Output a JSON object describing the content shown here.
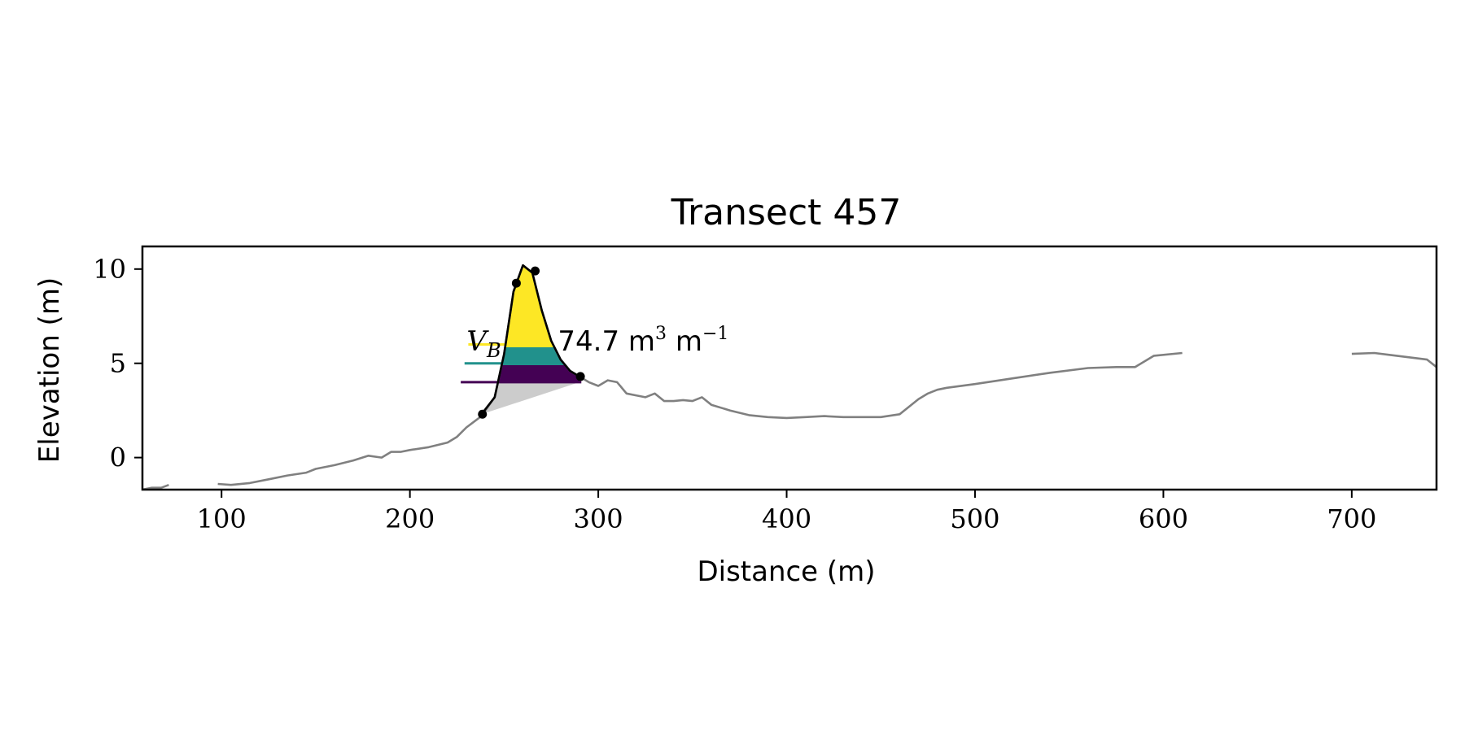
{
  "chart_data": {
    "type": "line",
    "title": "Transect 457",
    "xlabel": "Distance (m)",
    "ylabel": "Elevation (m)",
    "xlim": [
      58,
      745
    ],
    "ylim": [
      -1.7,
      11.2
    ],
    "xticks": [
      100,
      200,
      300,
      400,
      500,
      600,
      700
    ],
    "yticks": [
      0,
      5,
      10
    ],
    "xtick_labels": [
      "100",
      "200",
      "300",
      "400",
      "500",
      "600",
      "700"
    ],
    "ytick_labels": [
      "0",
      "5",
      "10"
    ],
    "grid": false,
    "colors": {
      "profile": "#808080",
      "dune_outline": "#000000",
      "lower_fill": "#cccccc",
      "band_top": "#fde725",
      "band_mid": "#21918c",
      "band_low": "#440154"
    },
    "profile": {
      "x": [
        58,
        63,
        68,
        72,
        98,
        105,
        115,
        125,
        135,
        145,
        150,
        160,
        170,
        178,
        185,
        190,
        195,
        200,
        210,
        220,
        225,
        230,
        238,
        245,
        250,
        255,
        260,
        265,
        270,
        275,
        280,
        285,
        290,
        295,
        300,
        305,
        310,
        315,
        320,
        325,
        330,
        335,
        340,
        345,
        350,
        355,
        360,
        370,
        380,
        390,
        400,
        410,
        420,
        430,
        440,
        450,
        460,
        465,
        470,
        475,
        480,
        485,
        500,
        520,
        540,
        560,
        575,
        585,
        595,
        610,
        640,
        670,
        700,
        712,
        720,
        740,
        745
      ],
      "y": [
        -1.7,
        -1.6,
        -1.6,
        -1.45,
        -1.4,
        -1.45,
        -1.35,
        -1.15,
        -0.95,
        -0.8,
        -0.6,
        -0.4,
        -0.15,
        0.1,
        0.0,
        0.3,
        0.3,
        0.4,
        0.55,
        0.8,
        1.1,
        1.6,
        2.2,
        3.2,
        5.5,
        8.8,
        10.2,
        9.8,
        7.8,
        6.2,
        5.2,
        4.6,
        4.3,
        4.0,
        3.8,
        4.1,
        4.0,
        3.4,
        3.3,
        3.2,
        3.4,
        3.0,
        3.0,
        3.05,
        3.0,
        3.2,
        2.8,
        2.5,
        2.25,
        2.15,
        2.1,
        2.15,
        2.2,
        2.15,
        2.15,
        2.15,
        2.3,
        2.7,
        3.1,
        3.4,
        3.6,
        3.7,
        3.9,
        4.2,
        4.5,
        4.75,
        4.8,
        4.8,
        5.4,
        5.55,
        5.5,
        5.45,
        5.5,
        5.55,
        5.45,
        5.2,
        4.8
      ]
    },
    "dune": {
      "x": [
        238,
        245,
        250,
        255,
        260,
        265,
        270,
        275,
        280,
        285,
        290
      ],
      "y": [
        2.3,
        3.2,
        5.5,
        8.8,
        10.2,
        9.8,
        7.8,
        6.2,
        5.2,
        4.6,
        4.3
      ],
      "points": [
        {
          "x": 238.5,
          "y": 2.3
        },
        {
          "x": 256.5,
          "y": 9.25
        },
        {
          "x": 266.5,
          "y": 9.9
        },
        {
          "x": 290.5,
          "y": 4.3
        }
      ],
      "bands": [
        {
          "y_top": 10.3,
          "y_bottom": 5.85,
          "color": "#fde725"
        },
        {
          "y_top": 5.85,
          "y_bottom": 4.9,
          "color": "#21918c"
        },
        {
          "y_top": 4.9,
          "y_bottom": 4.0,
          "color": "#440154"
        }
      ],
      "lower_fill_bottom": 2.3
    },
    "level_lines": [
      {
        "y": 6.0,
        "x_start": 231,
        "x_end": 251,
        "color": "#fde725"
      },
      {
        "y": 5.0,
        "x_start": 229,
        "x_end": 280,
        "color": "#21918c"
      },
      {
        "y": 4.0,
        "x_start": 227,
        "x_end": 291,
        "color": "#440154"
      }
    ],
    "annotation": {
      "label": "V_B",
      "value_text": "74.7 m",
      "unit_sup1": "3",
      "unit_mid": " m",
      "unit_sup2": "−1",
      "x": 231,
      "y": 6.2
    }
  }
}
